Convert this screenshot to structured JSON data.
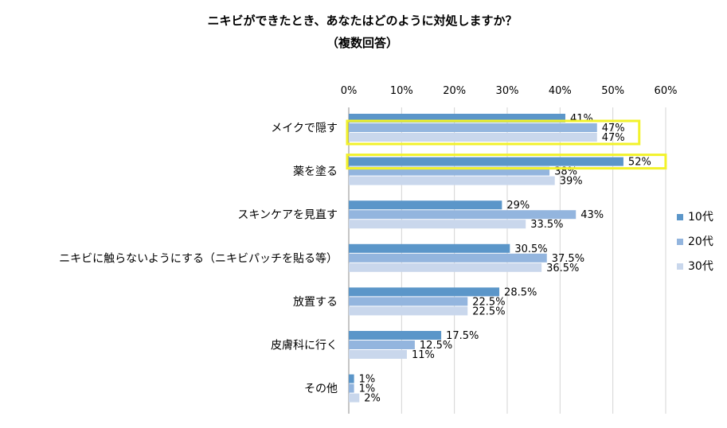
{
  "chart_data": {
    "type": "bar",
    "orientation": "horizontal",
    "title": "ニキビができたとき、あなたはどのように対処しますか？",
    "subtitle": "（複数回答）",
    "categories": [
      "メイクで隠す",
      "薬を塗る",
      "スキンケアを見直す",
      "ニキビに触らないようにする（ニキビパッチを貼る等）",
      "放置する",
      "皮膚科に行く",
      "その他"
    ],
    "series": [
      {
        "name": "10代",
        "color": "#5b96c9",
        "values": [
          41,
          52,
          29,
          30.5,
          28.5,
          17.5,
          1
        ],
        "labels": [
          "41%",
          "52%",
          "29%",
          "30.5%",
          "28.5%",
          "17.5%",
          "1%"
        ]
      },
      {
        "name": "20代",
        "color": "#93b5de",
        "values": [
          47,
          38,
          43,
          37.5,
          22.5,
          12.5,
          1
        ],
        "labels": [
          "47%",
          "38%",
          "43%",
          "37.5%",
          "22.5%",
          "12.5%",
          "1%"
        ]
      },
      {
        "name": "30代",
        "color": "#c9d7ec",
        "values": [
          47,
          39,
          33.5,
          36.5,
          22.5,
          11,
          2
        ],
        "labels": [
          "47%",
          "39%",
          "33.5%",
          "36.5%",
          "22.5%",
          "11%",
          "2%"
        ]
      }
    ],
    "xlim": [
      0,
      60
    ],
    "xticks": [
      "0%",
      "10%",
      "20%",
      "30%",
      "40%",
      "50%",
      "60%"
    ],
    "grid": true,
    "legend": "right",
    "highlight_categories": [
      0,
      1
    ],
    "highlight_color": "#f2f22a"
  }
}
